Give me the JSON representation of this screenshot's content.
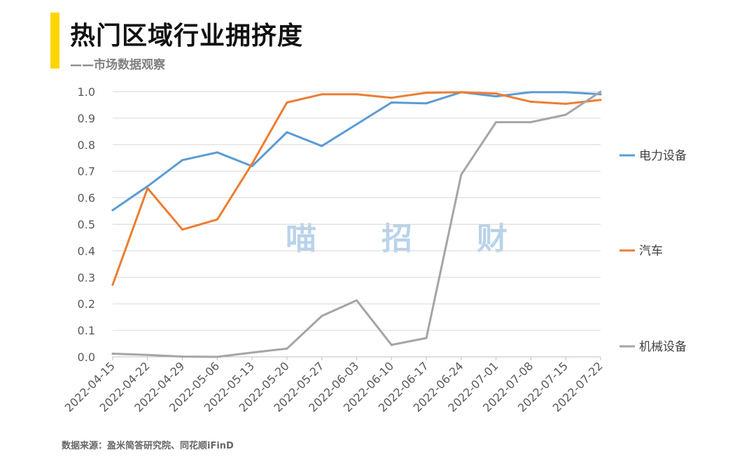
{
  "header": {
    "title": "热门区域行业拥挤度",
    "subtitle": "——市场数据观察"
  },
  "watermark": [
    "喵",
    "招",
    "财"
  ],
  "footer": {
    "source": "数据来源：盈米简答研究院、同花顺iFinD"
  },
  "colors": {
    "accent": "#FFD500",
    "grid": "#D9D9D9"
  },
  "chart_data": {
    "type": "line",
    "title": "热门区域行业拥挤度",
    "subtitle": "——市场数据观察",
    "x": [
      "2022-04-15",
      "2022-04-22",
      "2022-04-29",
      "2022-05-06",
      "2022-05-13",
      "2022-05-20",
      "2022-05-27",
      "2022-06-03",
      "2022-06-10",
      "2022-06-17",
      "2022-06-24",
      "2022-07-01",
      "2022-07-08",
      "2022-07-15",
      "2022-07-22"
    ],
    "ylim": [
      0,
      1
    ],
    "yticks": [
      "0.0",
      "0.1",
      "0.2",
      "0.3",
      "0.4",
      "0.5",
      "0.6",
      "0.7",
      "0.8",
      "0.9",
      "1.0"
    ],
    "grid": true,
    "legend_position": "right",
    "series": [
      {
        "name": "电力设备",
        "color": "#5B9BD5",
        "values": [
          0.553,
          0.643,
          0.742,
          0.771,
          0.719,
          0.847,
          0.795,
          0.877,
          0.959,
          0.956,
          0.998,
          0.982,
          0.998,
          0.998,
          0.99
        ]
      },
      {
        "name": "汽车",
        "color": "#ED7D31",
        "values": [
          0.272,
          0.636,
          0.48,
          0.518,
          0.728,
          0.959,
          0.99,
          0.99,
          0.977,
          0.996,
          0.998,
          0.993,
          0.962,
          0.954,
          0.969
        ]
      },
      {
        "name": "机械设备",
        "color": "#A5A5A5",
        "values": [
          0.012,
          0.007,
          0.001,
          0.0,
          0.016,
          0.031,
          0.154,
          0.213,
          0.045,
          0.071,
          0.687,
          0.885,
          0.885,
          0.913,
          1.0
        ]
      }
    ]
  }
}
